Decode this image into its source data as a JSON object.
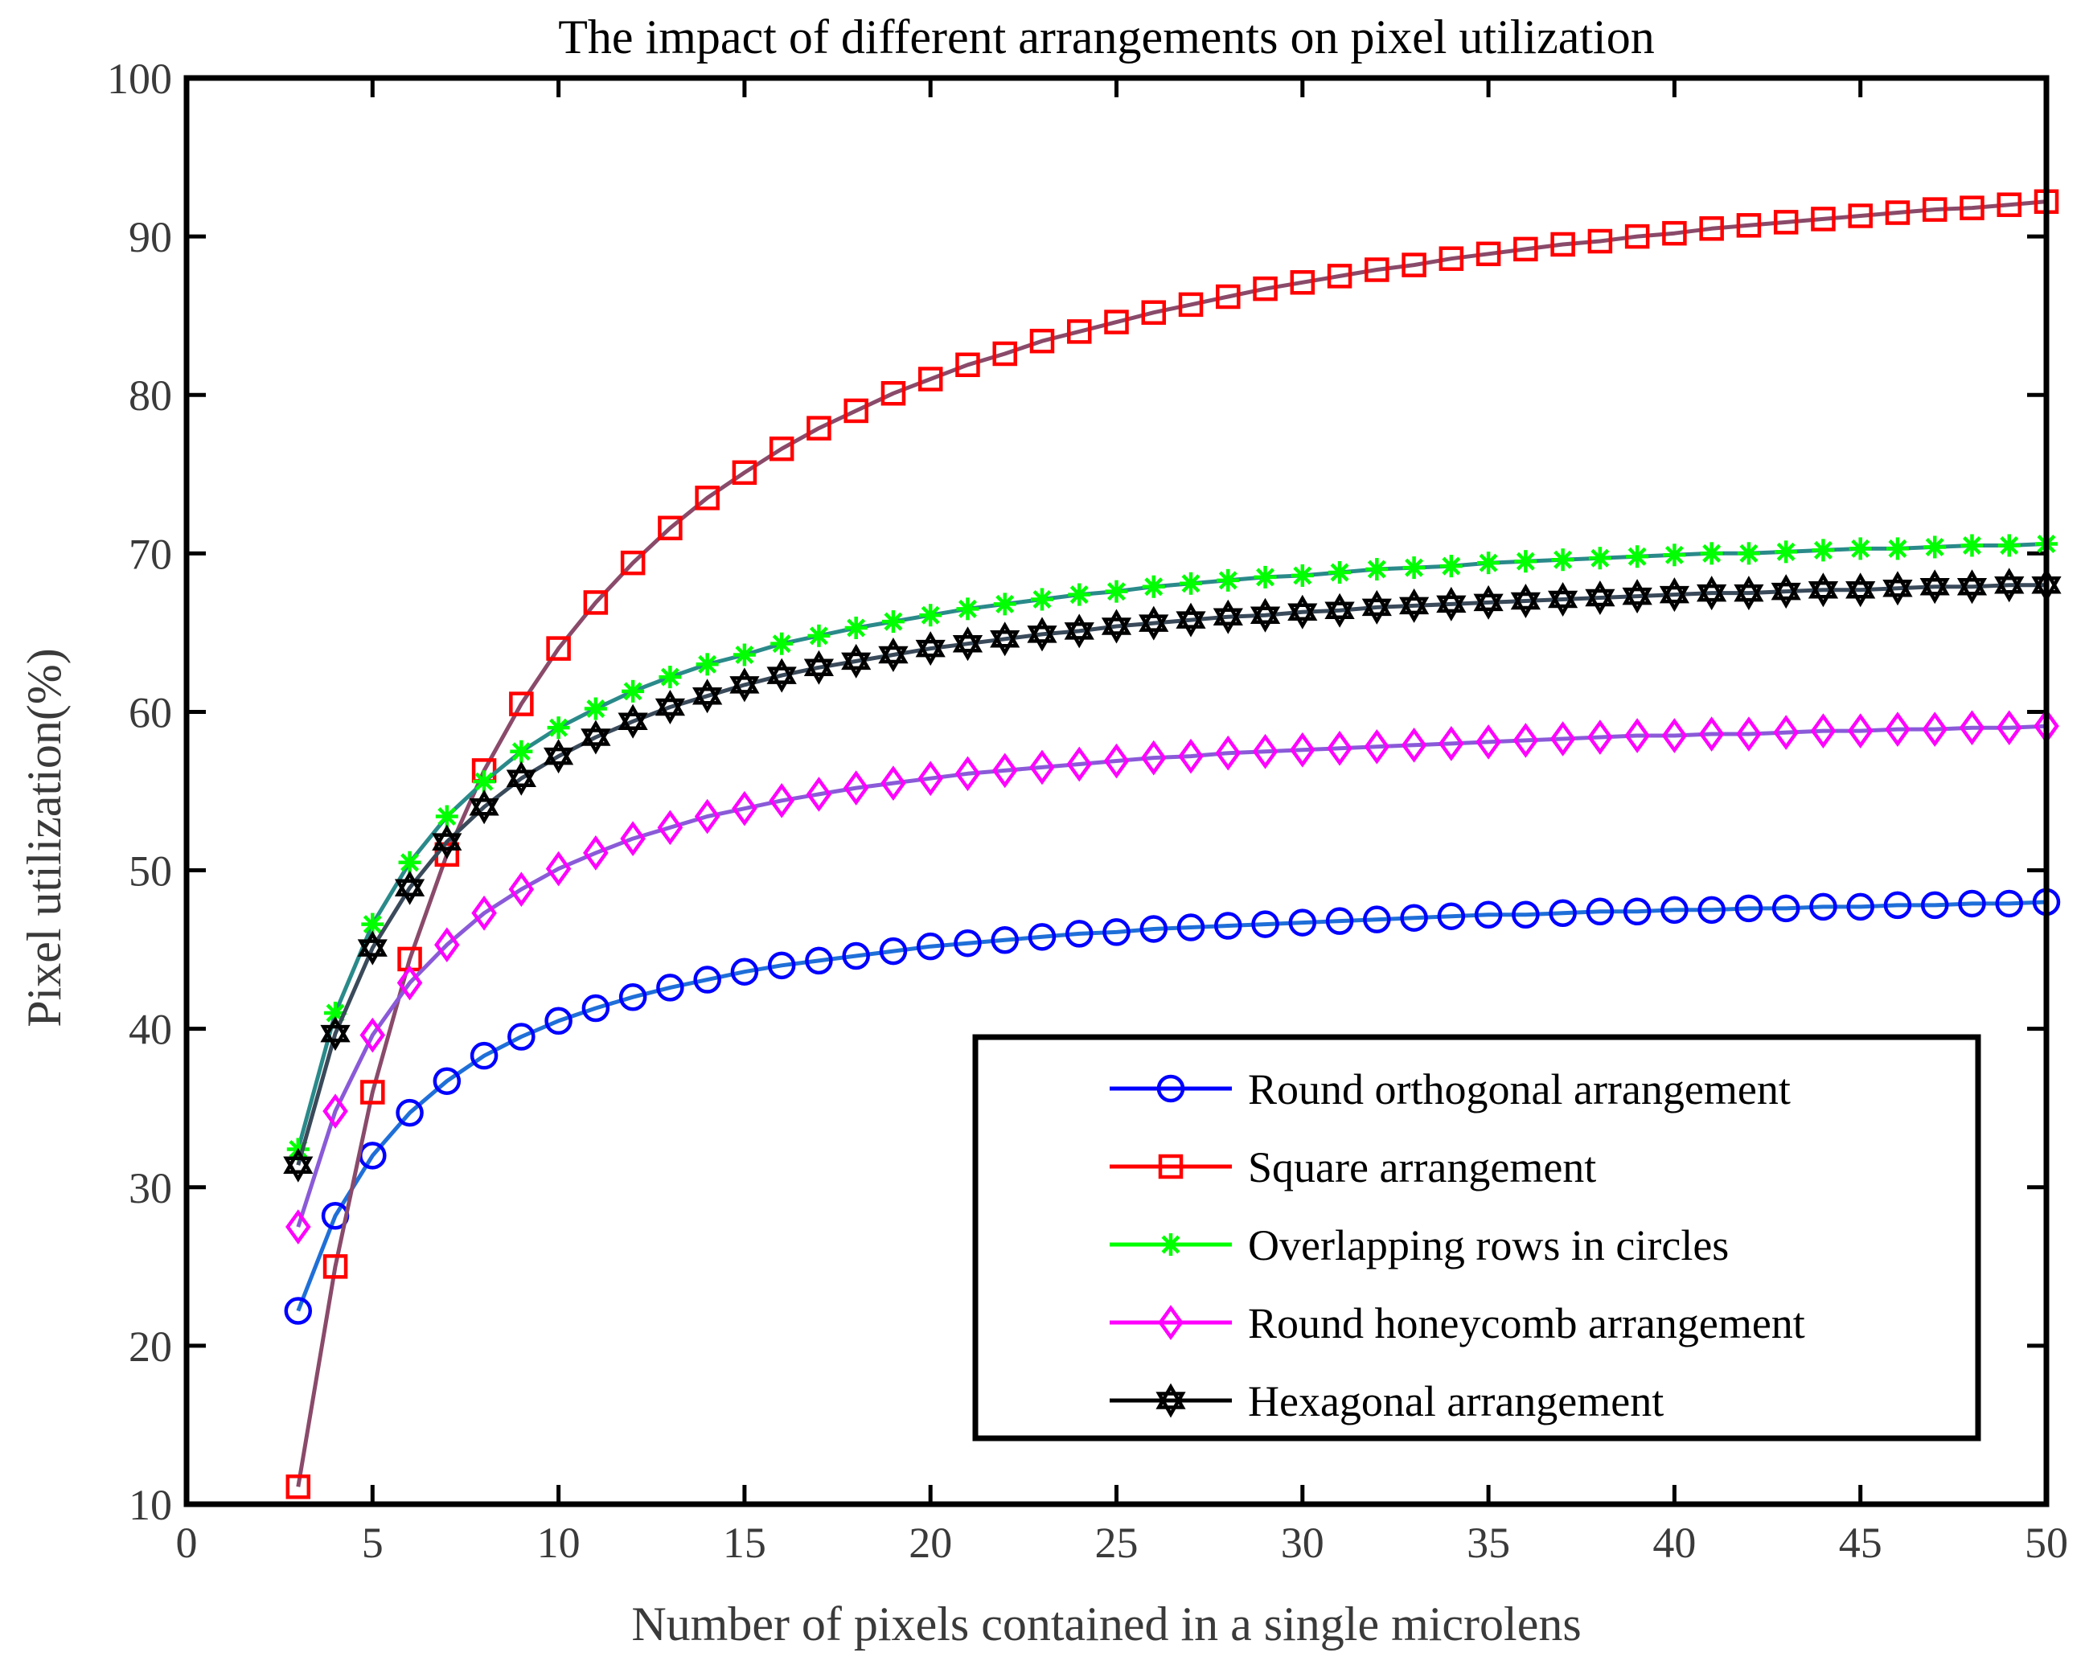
{
  "chart_data": {
    "type": "line",
    "title": "The impact of different arrangements on pixel utilization",
    "xlabel": "Number of pixels contained in a single microlens",
    "ylabel": "Pixel utilization(%)",
    "xlim": [
      0,
      50
    ],
    "ylim": [
      10,
      100
    ],
    "xticks": [
      0,
      5,
      10,
      15,
      20,
      25,
      30,
      35,
      40,
      45,
      50
    ],
    "yticks": [
      10,
      20,
      30,
      40,
      50,
      60,
      70,
      80,
      90,
      100
    ],
    "grid": false,
    "legend_position": "bottom-right",
    "x": [
      3,
      4,
      5,
      6,
      7,
      8,
      9,
      10,
      11,
      12,
      13,
      14,
      15,
      16,
      17,
      18,
      19,
      20,
      21,
      22,
      23,
      24,
      25,
      26,
      27,
      28,
      29,
      30,
      31,
      32,
      33,
      34,
      35,
      36,
      37,
      38,
      39,
      40,
      41,
      42,
      43,
      44,
      45,
      46,
      47,
      48,
      49,
      50
    ],
    "series": [
      {
        "name": "Round orthogonal arrangement",
        "color": "#0000ff",
        "line_color": "#1f6fd8",
        "marker": "circle",
        "values": [
          22.2,
          28.2,
          32.0,
          34.7,
          36.7,
          38.3,
          39.5,
          40.5,
          41.3,
          42.0,
          42.6,
          43.1,
          43.6,
          44.0,
          44.3,
          44.6,
          44.9,
          45.2,
          45.4,
          45.6,
          45.8,
          46.0,
          46.1,
          46.3,
          46.4,
          46.5,
          46.6,
          46.7,
          46.8,
          46.9,
          47.0,
          47.1,
          47.2,
          47.2,
          47.3,
          47.4,
          47.4,
          47.5,
          47.5,
          47.6,
          47.6,
          47.7,
          47.7,
          47.8,
          47.8,
          47.9,
          47.9,
          48.0
        ]
      },
      {
        "name": "Square arrangement",
        "color": "#ff0000",
        "line_color": "#8a4a6a",
        "marker": "square",
        "values": [
          11.1,
          25.0,
          36.0,
          44.4,
          51.0,
          56.3,
          60.5,
          64.0,
          66.9,
          69.4,
          71.6,
          73.5,
          75.1,
          76.6,
          77.9,
          79.0,
          80.1,
          81.0,
          81.9,
          82.6,
          83.4,
          84.0,
          84.6,
          85.2,
          85.7,
          86.2,
          86.7,
          87.1,
          87.5,
          87.9,
          88.2,
          88.6,
          88.9,
          89.2,
          89.5,
          89.7,
          90.0,
          90.2,
          90.5,
          90.7,
          90.9,
          91.1,
          91.3,
          91.5,
          91.7,
          91.8,
          92.0,
          92.2
        ]
      },
      {
        "name": "Overlapping rows in circles",
        "color": "#00ff00",
        "line_color": "#2a8a8a",
        "marker": "star",
        "values": [
          32.4,
          41.0,
          46.6,
          50.5,
          53.4,
          55.6,
          57.5,
          59.0,
          60.2,
          61.3,
          62.2,
          63.0,
          63.6,
          64.3,
          64.8,
          65.3,
          65.7,
          66.1,
          66.5,
          66.8,
          67.1,
          67.4,
          67.6,
          67.9,
          68.1,
          68.3,
          68.5,
          68.6,
          68.8,
          69.0,
          69.1,
          69.2,
          69.4,
          69.5,
          69.6,
          69.7,
          69.8,
          69.9,
          70.0,
          70.0,
          70.1,
          70.2,
          70.3,
          70.3,
          70.4,
          70.5,
          70.5,
          70.6
        ]
      },
      {
        "name": "Round honeycomb arrangement",
        "color": "#ff00ff",
        "line_color": "#8a5ad8",
        "marker": "diamond",
        "values": [
          27.5,
          34.8,
          39.6,
          42.9,
          45.3,
          47.3,
          48.8,
          50.1,
          51.1,
          52.0,
          52.7,
          53.4,
          53.9,
          54.4,
          54.8,
          55.2,
          55.5,
          55.8,
          56.1,
          56.3,
          56.5,
          56.7,
          56.9,
          57.1,
          57.2,
          57.4,
          57.5,
          57.6,
          57.7,
          57.8,
          57.9,
          58.0,
          58.1,
          58.2,
          58.3,
          58.4,
          58.5,
          58.5,
          58.6,
          58.6,
          58.7,
          58.8,
          58.8,
          58.9,
          58.9,
          59.0,
          59.0,
          59.1
        ]
      },
      {
        "name": "Hexagonal arrangement",
        "color": "#000000",
        "line_color": "#3a4a5a",
        "marker": "hexagram",
        "values": [
          31.4,
          39.7,
          45.1,
          48.9,
          51.8,
          54.0,
          55.8,
          57.2,
          58.4,
          59.4,
          60.3,
          61.0,
          61.7,
          62.3,
          62.8,
          63.2,
          63.6,
          64.0,
          64.3,
          64.6,
          64.9,
          65.1,
          65.4,
          65.6,
          65.8,
          66.0,
          66.1,
          66.3,
          66.4,
          66.6,
          66.7,
          66.8,
          66.9,
          67.0,
          67.1,
          67.2,
          67.3,
          67.4,
          67.5,
          67.5,
          67.6,
          67.7,
          67.7,
          67.8,
          67.9,
          67.9,
          68.0,
          68.0
        ]
      }
    ]
  }
}
